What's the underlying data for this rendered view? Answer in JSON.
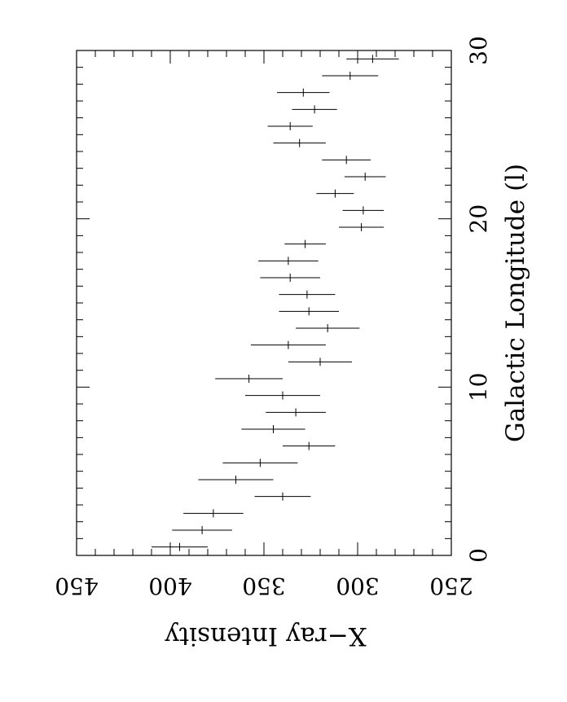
{
  "chart_data": {
    "type": "scatter",
    "orientation": "rotated 90 degrees clockwise",
    "title": "",
    "xlabel": "Galactic Longitude (l)",
    "ylabel": "X−ray Intensity",
    "xlim": [
      0,
      30
    ],
    "ylim": [
      250,
      450
    ],
    "xticks": [
      0,
      10,
      20,
      30
    ],
    "yticks": [
      250,
      300,
      350,
      400,
      450
    ],
    "x_minor_step": 1,
    "y_minor_step": 10,
    "grid": false,
    "error_bars": "horizontal on y value",
    "points": [
      {
        "x": 0.5,
        "y": 395,
        "err": 15
      },
      {
        "x": 1.5,
        "y": 383,
        "err": 16
      },
      {
        "x": 2.5,
        "y": 377,
        "err": 16
      },
      {
        "x": 3.5,
        "y": 340,
        "err": 15
      },
      {
        "x": 4.5,
        "y": 365,
        "err": 20
      },
      {
        "x": 5.5,
        "y": 352,
        "err": 20
      },
      {
        "x": 6.5,
        "y": 326,
        "err": 14
      },
      {
        "x": 7.5,
        "y": 345,
        "err": 17
      },
      {
        "x": 8.5,
        "y": 333,
        "err": 16
      },
      {
        "x": 9.5,
        "y": 340,
        "err": 20
      },
      {
        "x": 10.5,
        "y": 358,
        "err": 18
      },
      {
        "x": 11.5,
        "y": 320,
        "err": 17
      },
      {
        "x": 12.5,
        "y": 337,
        "err": 20
      },
      {
        "x": 13.5,
        "y": 316,
        "err": 17
      },
      {
        "x": 14.5,
        "y": 326,
        "err": 16
      },
      {
        "x": 15.5,
        "y": 327,
        "err": 15
      },
      {
        "x": 16.5,
        "y": 336,
        "err": 16
      },
      {
        "x": 17.5,
        "y": 337,
        "err": 16
      },
      {
        "x": 18.5,
        "y": 328,
        "err": 11
      },
      {
        "x": 19.5,
        "y": 298,
        "err": 12
      },
      {
        "x": 20.5,
        "y": 297,
        "err": 11
      },
      {
        "x": 21.5,
        "y": 312,
        "err": 10
      },
      {
        "x": 22.5,
        "y": 296,
        "err": 11
      },
      {
        "x": 23.5,
        "y": 306,
        "err": 13
      },
      {
        "x": 24.5,
        "y": 331,
        "err": 14
      },
      {
        "x": 25.5,
        "y": 336,
        "err": 12
      },
      {
        "x": 26.5,
        "y": 323,
        "err": 12
      },
      {
        "x": 27.5,
        "y": 329,
        "err": 14
      },
      {
        "x": 28.5,
        "y": 304,
        "err": 15
      },
      {
        "x": 29.5,
        "y": 292,
        "err": 14
      }
    ]
  }
}
